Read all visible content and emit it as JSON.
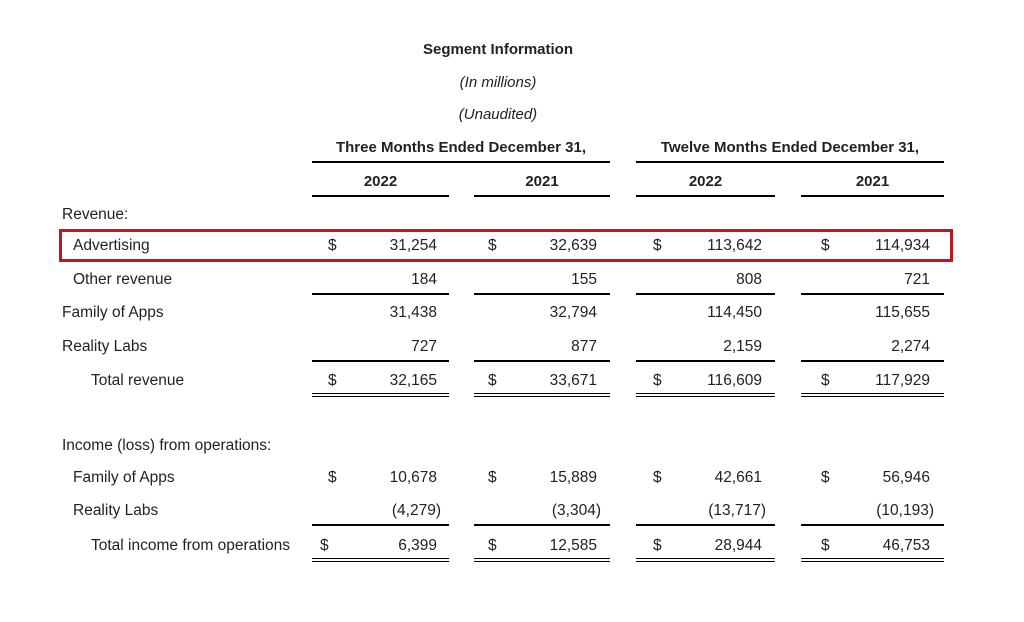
{
  "title": "Segment Information",
  "subtitle1": "(In millions)",
  "subtitle2": "(Unaudited)",
  "period_headers": [
    "Three Months Ended December 31,",
    "Twelve Months Ended December 31,"
  ],
  "year_headers": [
    "2022",
    "2021",
    "2022",
    "2021"
  ],
  "currency_symbol": "$",
  "highlight_color": "#c0161c",
  "sections": {
    "revenue": {
      "heading": "Revenue:",
      "rows": [
        {
          "label": "Advertising",
          "values": [
            "31,254",
            "32,639",
            "113,642",
            "114,934"
          ],
          "dollar": true,
          "highlighted": true
        },
        {
          "label": "Other revenue",
          "values": [
            "184",
            "155",
            "808",
            "721"
          ],
          "dollar": false
        },
        {
          "label": "Family of Apps",
          "values": [
            "31,438",
            "32,794",
            "114,450",
            "115,655"
          ],
          "dollar": false
        },
        {
          "label": "Reality Labs",
          "values": [
            "727",
            "877",
            "2,159",
            "2,274"
          ],
          "dollar": false
        },
        {
          "label": "Total revenue",
          "values": [
            "32,165",
            "33,671",
            "116,609",
            "117,929"
          ],
          "dollar": true
        }
      ]
    },
    "income": {
      "heading": "Income (loss) from operations:",
      "rows": [
        {
          "label": "Family of Apps",
          "values": [
            "10,678",
            "15,889",
            "42,661",
            "56,946"
          ],
          "dollar": true
        },
        {
          "label": "Reality Labs",
          "values": [
            "(4,279)",
            "(3,304)",
            "(13,717)",
            "(10,193)"
          ],
          "dollar": false
        },
        {
          "label": "Total income from operations",
          "values": [
            "6,399",
            "12,585",
            "28,944",
            "46,753"
          ],
          "dollar": true
        }
      ]
    }
  }
}
